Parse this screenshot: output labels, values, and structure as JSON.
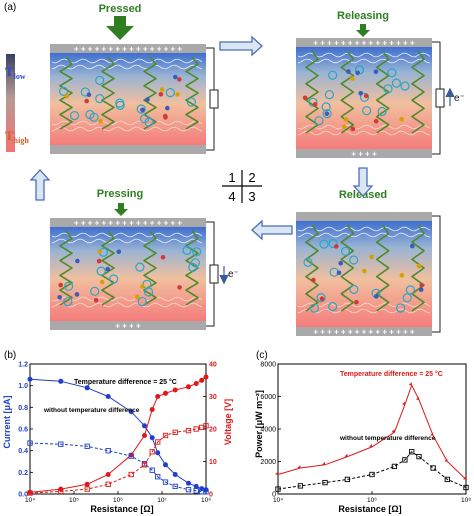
{
  "top": {
    "panel_label": "(a)",
    "states": [
      {
        "label": "Pressed",
        "top_plate": "+ + + + + + + + + + + + + + + +",
        "bottom_plate": "",
        "current": ""
      },
      {
        "label": "Releasing",
        "top_plate": "+ + + + + + + + + + + + + + +",
        "bottom_plate": "+ + + +",
        "current": "e⁻"
      },
      {
        "label": "Released",
        "top_plate": "",
        "bottom_plate": "+ + + + + + + + + + + + + + +",
        "current": ""
      },
      {
        "label": "Pressing",
        "top_plate": "+ + + + + + + + + + + + + + + +",
        "bottom_plate": "+ + + +",
        "current": "e⁻"
      }
    ],
    "t_low": {
      "main": "T",
      "sub": "low"
    },
    "t_high": {
      "main": "T",
      "sub": "high"
    },
    "cycle_numbers": [
      "1",
      "2",
      "4",
      "3"
    ]
  },
  "panel_b": {
    "panel_label": "(b)",
    "ylabel_left": "Current [μA]",
    "ylabel_right": "Voltage [V]",
    "xlabel": "Resistance [Ω]",
    "annotation_1": "Temperature difference = 25 °C",
    "annotation_2": "without temperature difference",
    "y_left_ticks": [
      "0.0",
      "0.2",
      "0.4",
      "0.6",
      "0.8",
      "1.0",
      "1.2"
    ],
    "y_right_ticks": [
      "0",
      "10",
      "20",
      "30",
      "40"
    ],
    "x_ticks": [
      "10⁴",
      "10⁵",
      "10⁶",
      "10⁷",
      "10⁸"
    ],
    "colors": {
      "current": "#1f3fd0",
      "voltage": "#e01818"
    }
  },
  "panel_c": {
    "panel_label": "(c)",
    "ylabel": "Power [μW m⁻²]",
    "xlabel": "Resistance [Ω]",
    "annotation_1": "Temperature difference = 25 °C",
    "annotation_2": "without temperature difference",
    "y_ticks": [
      "0",
      "2000",
      "4000",
      "6000",
      "8000"
    ],
    "x_ticks": [
      "10⁴",
      "10⁶",
      "10⁸"
    ],
    "colors": {
      "with_dt": "#e01818",
      "without_dt": "#000000"
    }
  },
  "chart_data": [
    {
      "type": "line",
      "title": "",
      "xlabel": "Resistance [Ω]",
      "ylabel": "Current [μA]",
      "y2label": "Voltage [V]",
      "xscale": "log",
      "xlim": [
        10000,
        100000000
      ],
      "ylim": [
        0,
        1.2
      ],
      "y2lim": [
        0,
        40
      ],
      "x": [
        10000,
        50000,
        200000,
        600000,
        2000000,
        4000000,
        6000000,
        8000000,
        12000000,
        20000000,
        40000000,
        60000000,
        80000000,
        100000000
      ],
      "series": [
        {
          "name": "Current, ΔT = 25 °C",
          "axis": "left",
          "values": [
            1.06,
            1.04,
            0.98,
            0.9,
            0.76,
            0.63,
            0.52,
            0.38,
            0.27,
            0.18,
            0.1,
            0.07,
            0.05,
            0.04
          ]
        },
        {
          "name": "Voltage, ΔT = 25 °C",
          "axis": "right",
          "values": [
            0.5,
            1.5,
            3,
            6,
            12,
            18,
            26,
            30,
            31,
            32,
            33,
            34,
            35,
            36
          ]
        },
        {
          "name": "Current, without temperature difference",
          "axis": "left",
          "values": [
            0.47,
            0.46,
            0.44,
            0.4,
            0.35,
            0.28,
            0.22,
            0.16,
            0.11,
            0.07,
            0.04,
            0.03,
            0.02,
            0.02
          ]
        },
        {
          "name": "Voltage, without temperature difference",
          "axis": "right",
          "values": [
            0.3,
            0.8,
            1.5,
            3,
            6,
            9,
            13,
            16,
            18,
            19,
            19.5,
            20,
            20.5,
            21
          ]
        }
      ],
      "legend": "none"
    },
    {
      "type": "line",
      "title": "",
      "xlabel": "Resistance [Ω]",
      "ylabel": "Power [μW m⁻²]",
      "xscale": "log",
      "xlim": [
        10000,
        100000000
      ],
      "ylim": [
        0,
        8000
      ],
      "x": [
        10000,
        30000,
        100000,
        300000,
        1000000,
        3000000,
        5000000,
        7000000,
        10000000,
        20000000,
        40000000,
        100000000
      ],
      "series": [
        {
          "name": "Temperature difference = 25 °C",
          "values": [
            1200,
            1600,
            1800,
            2300,
            2900,
            3800,
            5500,
            6700,
            5800,
            3600,
            2000,
            900
          ]
        },
        {
          "name": "without temperature difference",
          "values": [
            300,
            500,
            700,
            900,
            1200,
            1700,
            2100,
            2600,
            2300,
            1600,
            900,
            400
          ]
        }
      ],
      "legend": "none"
    }
  ]
}
